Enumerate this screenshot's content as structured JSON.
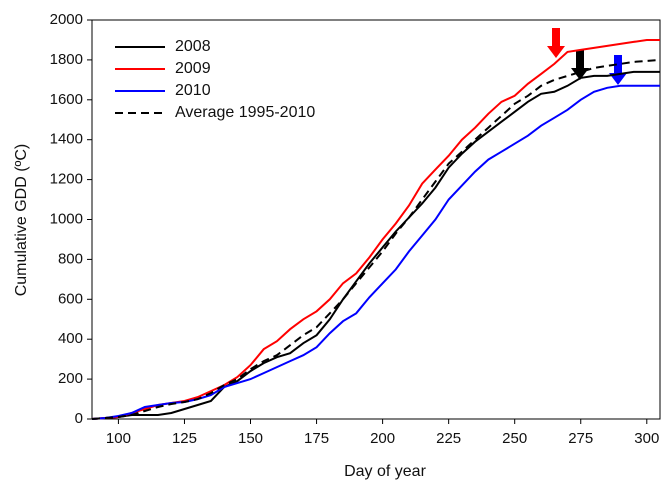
{
  "chart_data": {
    "type": "line",
    "x_label": "Day of year",
    "y_label": "Cumulative GDD (ºC)",
    "x": [
      90,
      95,
      100,
      105,
      110,
      115,
      120,
      125,
      130,
      135,
      140,
      145,
      150,
      155,
      160,
      165,
      170,
      175,
      180,
      185,
      190,
      195,
      200,
      205,
      210,
      215,
      220,
      225,
      230,
      235,
      240,
      245,
      250,
      255,
      260,
      265,
      270,
      275,
      280,
      285,
      290,
      295,
      300,
      305
    ],
    "series": [
      {
        "name": "2008",
        "color": "#000000",
        "style": "solid",
        "values": [
          0,
          5,
          10,
          20,
          20,
          20,
          30,
          50,
          70,
          90,
          160,
          190,
          240,
          280,
          310,
          330,
          380,
          420,
          500,
          600,
          690,
          780,
          860,
          940,
          1010,
          1080,
          1160,
          1260,
          1330,
          1390,
          1440,
          1490,
          1540,
          1590,
          1630,
          1640,
          1670,
          1710,
          1720,
          1720,
          1730,
          1740,
          1740,
          1740
        ]
      },
      {
        "name": "2009",
        "color": "#ff0000",
        "style": "solid",
        "values": [
          0,
          5,
          10,
          30,
          50,
          70,
          80,
          90,
          110,
          140,
          170,
          210,
          270,
          350,
          390,
          450,
          500,
          540,
          600,
          680,
          730,
          810,
          900,
          980,
          1070,
          1180,
          1250,
          1320,
          1400,
          1460,
          1530,
          1590,
          1620,
          1680,
          1730,
          1780,
          1840,
          1850,
          1860,
          1870,
          1880,
          1890,
          1900,
          1900
        ]
      },
      {
        "name": "2010",
        "color": "#0000ff",
        "style": "solid",
        "values": [
          0,
          5,
          15,
          30,
          60,
          70,
          80,
          85,
          100,
          120,
          160,
          180,
          200,
          230,
          260,
          290,
          320,
          360,
          430,
          490,
          530,
          610,
          680,
          750,
          840,
          920,
          1000,
          1100,
          1170,
          1240,
          1300,
          1340,
          1380,
          1420,
          1470,
          1510,
          1550,
          1600,
          1640,
          1660,
          1670,
          1670,
          1670,
          1670
        ]
      },
      {
        "name": "Average 1995-2010",
        "color": "#000000",
        "style": "dashed",
        "values": [
          0,
          5,
          10,
          20,
          40,
          60,
          75,
          85,
          100,
          130,
          170,
          200,
          250,
          290,
          320,
          370,
          420,
          460,
          530,
          600,
          680,
          760,
          840,
          930,
          1010,
          1100,
          1190,
          1280,
          1340,
          1400,
          1460,
          1520,
          1580,
          1620,
          1670,
          1700,
          1720,
          1740,
          1760,
          1770,
          1780,
          1790,
          1795,
          1800
        ]
      }
    ],
    "xlim": [
      90,
      305
    ],
    "xticks": [
      100,
      125,
      150,
      175,
      200,
      225,
      250,
      275,
      300
    ],
    "ylim": [
      0,
      2000
    ],
    "yticks": [
      0,
      200,
      400,
      600,
      800,
      1000,
      1200,
      1400,
      1600,
      1800,
      2000
    ],
    "legend": "upper-left"
  }
}
